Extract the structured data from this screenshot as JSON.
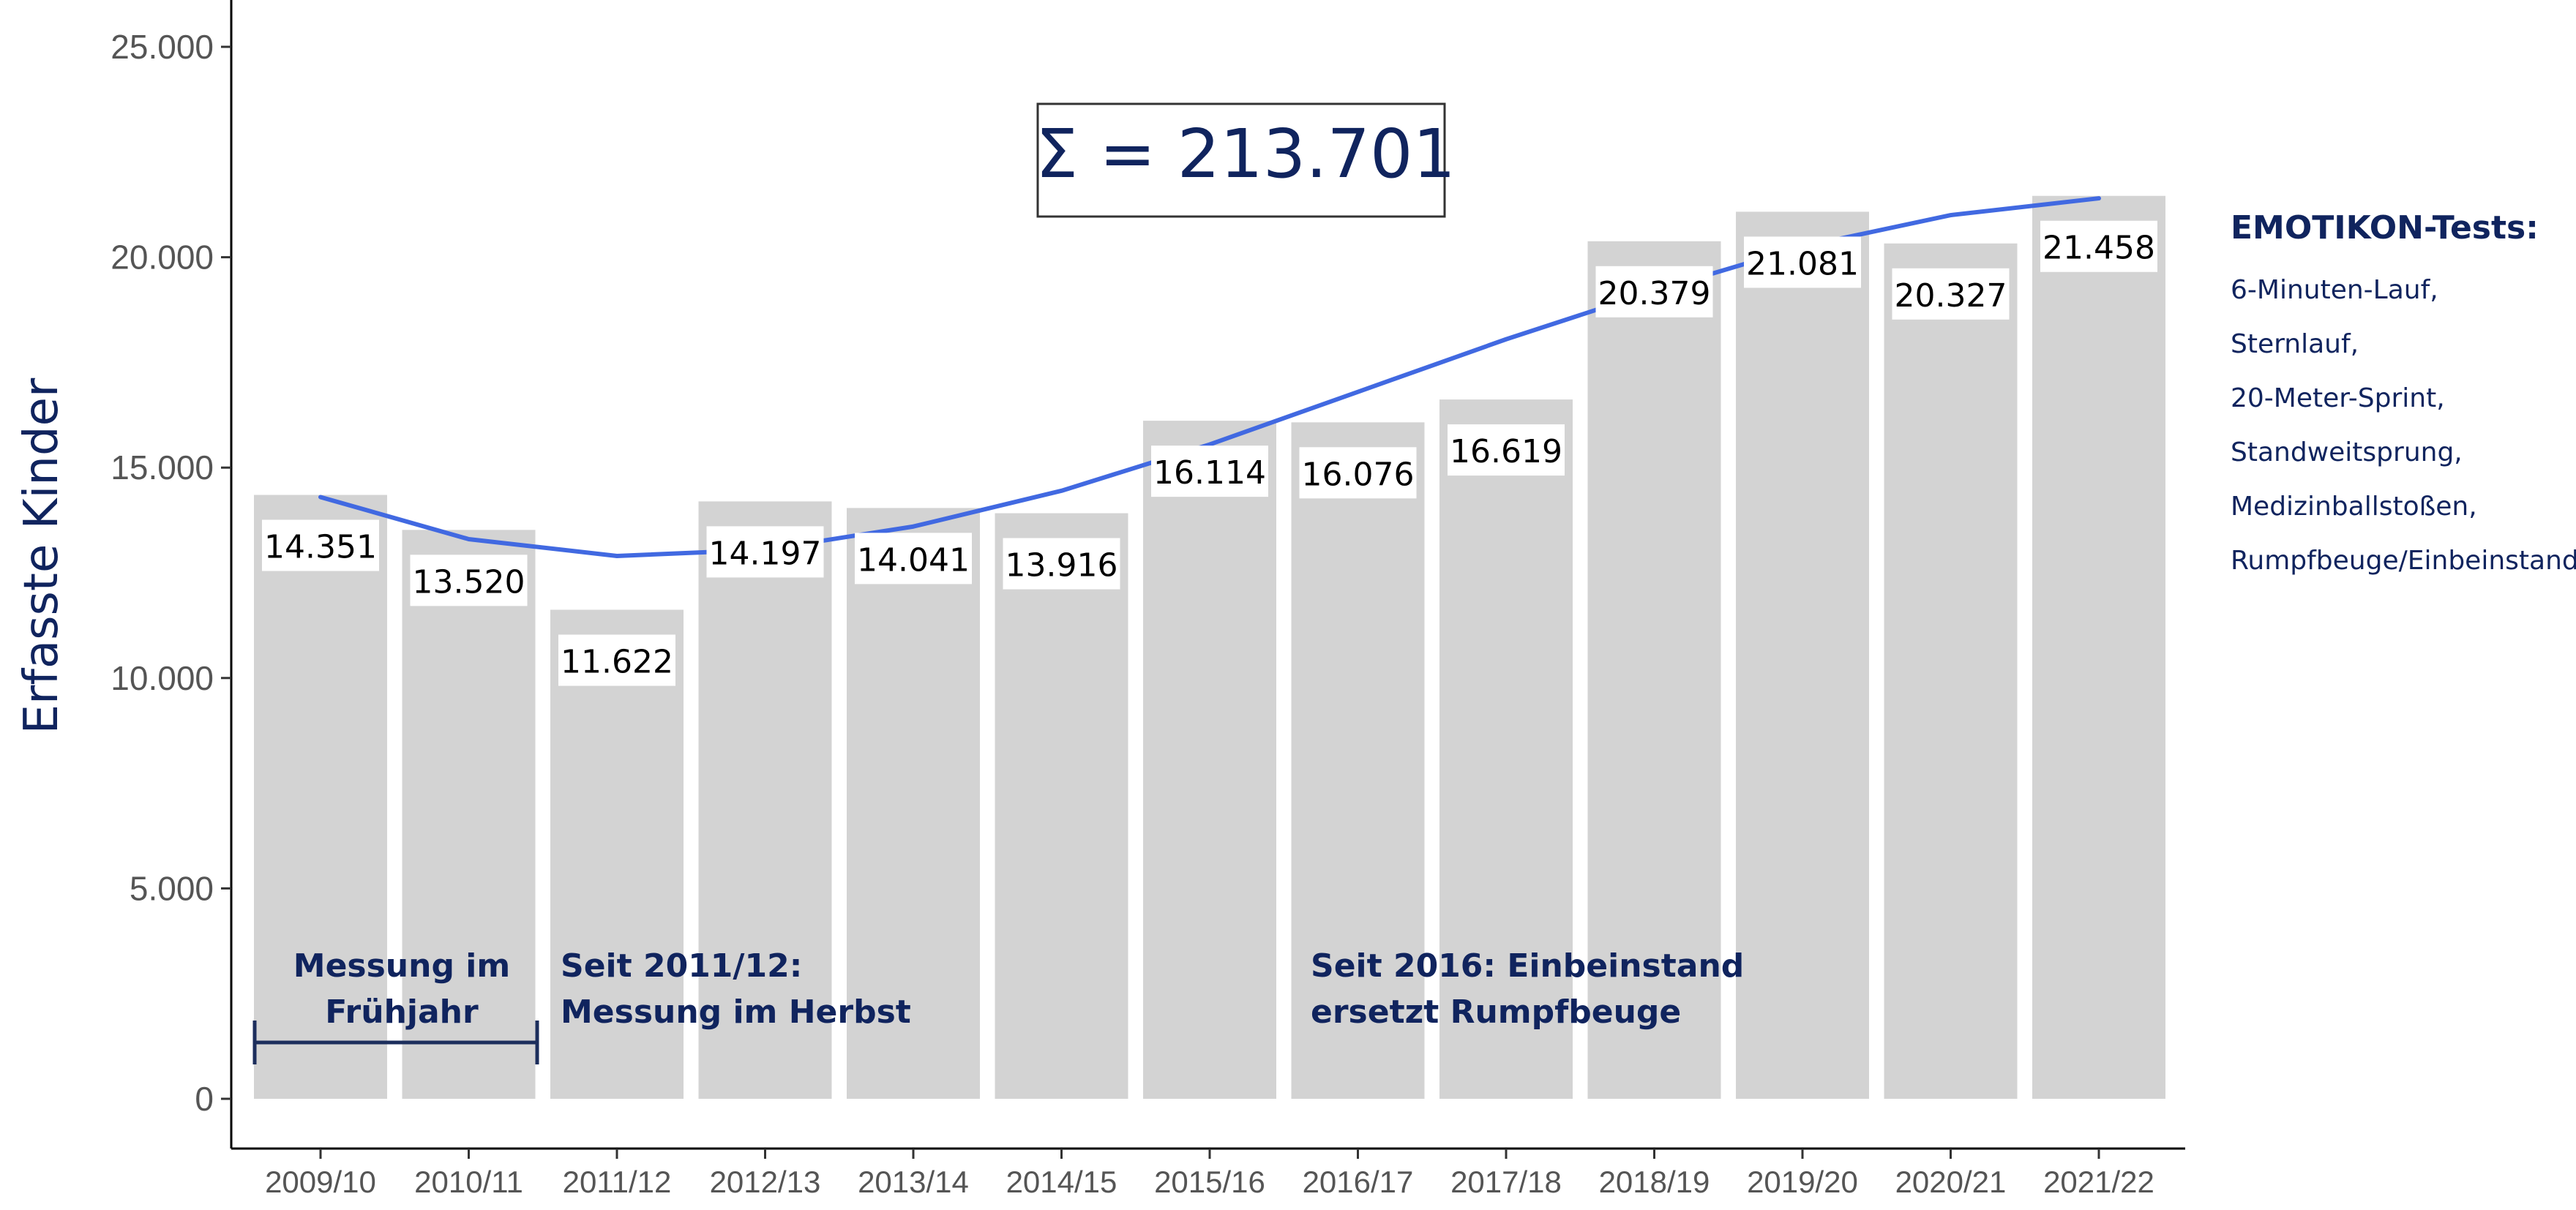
{
  "chart_data": {
    "type": "bar",
    "categories": [
      "2009/10",
      "2010/11",
      "2011/12",
      "2012/13",
      "2013/14",
      "2014/15",
      "2015/16",
      "2016/17",
      "2017/18",
      "2018/19",
      "2019/20",
      "2020/21",
      "2021/22"
    ],
    "values": [
      14351,
      13520,
      11622,
      14197,
      14041,
      13916,
      16114,
      16076,
      16619,
      20379,
      21081,
      20327,
      21458
    ],
    "value_labels": [
      "14.351",
      "13.520",
      "11.622",
      "14.197",
      "14.041",
      "13.916",
      "16.114",
      "16.076",
      "16.619",
      "20.379",
      "21.081",
      "20.327",
      "21.458"
    ],
    "trend": {
      "type": "line",
      "values": [
        14300,
        13300,
        12900,
        13050,
        13600,
        14450,
        15550,
        16800,
        18050,
        19200,
        20250,
        21000,
        21400
      ]
    },
    "ylabel": "Erfasste Kinder",
    "xlabel": "",
    "ylim": [
      0,
      25000
    ],
    "yticks": [
      0,
      5000,
      10000,
      15000,
      20000,
      25000
    ],
    "ytick_labels": [
      "0",
      "5.000",
      "10.000",
      "15.000",
      "20.000",
      "25.000"
    ],
    "grid": false,
    "colors": {
      "bar": "#d3d3d3",
      "line": "#4169e1",
      "text_dark": "#10245e"
    },
    "sum_box": "Σ = 213.701",
    "annotations": {
      "fruehjahr": [
        "Messung im",
        "Frühjahr"
      ],
      "herbst": [
        "Seit 2011/12:",
        "Messung im Herbst"
      ],
      "einbeinstand": [
        "Seit 2016: Einbeinstand",
        "ersetzt Rumpfbeuge"
      ]
    },
    "side_legend": {
      "title": "EMOTIKON-Tests:",
      "items": [
        "6-Minuten-Lauf,",
        "Sternlauf,",
        "20-Meter-Sprint,",
        "Standweitsprung,",
        "Medizinballstoßen,",
        "Rumpfbeuge/Einbeinstand"
      ]
    }
  }
}
